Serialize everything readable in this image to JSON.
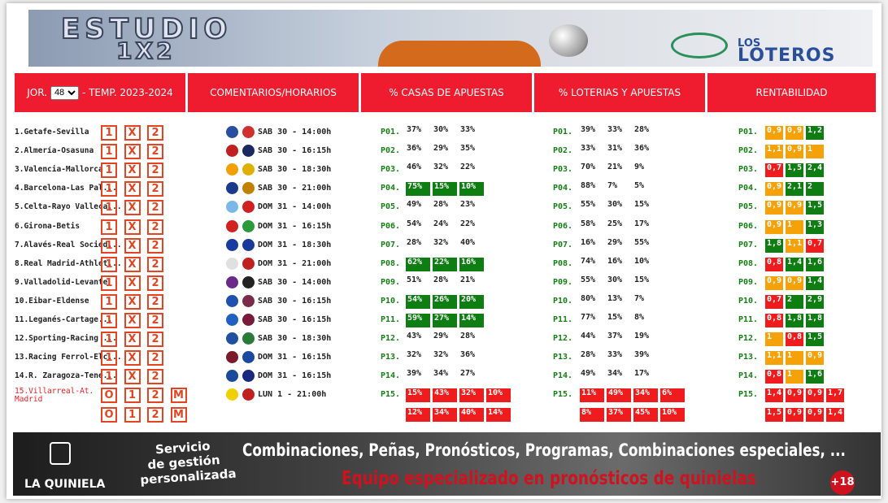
{
  "header": {
    "title_line1": "ESTUDIO",
    "title_line2": "1X2",
    "brand_small": "LOS",
    "brand": "LOTEROS"
  },
  "tabs": {
    "jornada_label": "JOR.",
    "jornada": "48",
    "season": "- TEMP. 2023-2024",
    "comments": "COMENTARIOS/HORARIOS",
    "casas": "% CASAS DE APUESTAS",
    "loterias": "% LOTERIAS Y APUESTAS",
    "rentabilidad": "RENTABILIDAD"
  },
  "rows": [
    {
      "match": "1.Getafe-Sevilla",
      "signs": [
        "1",
        "X",
        "2"
      ],
      "time": "SAB 30 - 14:00h",
      "pos": "P01.",
      "casas": [
        "37%",
        "30%",
        "33%"
      ],
      "loterias": [
        "39%",
        "33%",
        "28%"
      ],
      "rent": [
        "0,9",
        "0,9",
        "1,2"
      ],
      "rent_colors": [
        "orange",
        "orange",
        "green"
      ]
    },
    {
      "match": "2.Almería-Osasuna",
      "signs": [
        "1",
        "X",
        "2"
      ],
      "time": "SAB 30 - 16:15h",
      "pos": "P02.",
      "casas": [
        "36%",
        "29%",
        "35%"
      ],
      "loterias": [
        "33%",
        "31%",
        "36%"
      ],
      "rent": [
        "1,1",
        "0,9",
        "1"
      ],
      "rent_colors": [
        "orange",
        "orange",
        "orange"
      ]
    },
    {
      "match": "3.Valencia-Mallorca",
      "signs": [
        "1",
        "X",
        "2"
      ],
      "time": "SAB 30 - 18:30h",
      "pos": "P03.",
      "casas": [
        "46%",
        "32%",
        "22%"
      ],
      "loterias": [
        "70%",
        "21%",
        "9%"
      ],
      "rent": [
        "0,7",
        "1,5",
        "2,4"
      ],
      "rent_colors": [
        "red",
        "green",
        "green"
      ]
    },
    {
      "match": "4.Barcelona-Las Pal...",
      "signs": [
        "1",
        "X",
        "2"
      ],
      "time": "SAB 30 - 21:00h",
      "pos": "P04.",
      "casas": [
        "75%",
        "15%",
        "10%"
      ],
      "casas_color": "green",
      "loterias": [
        "88%",
        "7%",
        "5%"
      ],
      "rent": [
        "0,9",
        "2,1",
        "2"
      ],
      "rent_colors": [
        "orange",
        "green",
        "green"
      ]
    },
    {
      "match": "5.Celta-Rayo Valleca...",
      "signs": [
        "1",
        "X",
        "2"
      ],
      "time": "DOM 31 - 14:00h",
      "pos": "P05.",
      "casas": [
        "49%",
        "28%",
        "23%"
      ],
      "loterias": [
        "55%",
        "30%",
        "15%"
      ],
      "rent": [
        "0,9",
        "0,9",
        "1,5"
      ],
      "rent_colors": [
        "orange",
        "orange",
        "green"
      ]
    },
    {
      "match": "6.Girona-Betis",
      "signs": [
        "1",
        "X",
        "2"
      ],
      "time": "DOM 31 - 16:15h",
      "pos": "P06.",
      "casas": [
        "54%",
        "24%",
        "22%"
      ],
      "loterias": [
        "58%",
        "25%",
        "17%"
      ],
      "rent": [
        "0,9",
        "1",
        "1,3"
      ],
      "rent_colors": [
        "orange",
        "orange",
        "green"
      ]
    },
    {
      "match": "7.Alavés-Real Socied...",
      "signs": [
        "1",
        "X",
        "2"
      ],
      "time": "DOM 31 - 18:30h",
      "pos": "P07.",
      "casas": [
        "28%",
        "32%",
        "40%"
      ],
      "loterias": [
        "16%",
        "29%",
        "55%"
      ],
      "rent": [
        "1,8",
        "1,1",
        "0,7"
      ],
      "rent_colors": [
        "green",
        "orange",
        "red"
      ]
    },
    {
      "match": "8.Real Madrid-Athlet...",
      "signs": [
        "1",
        "X",
        "2"
      ],
      "time": "DOM 31 - 21:00h",
      "pos": "P08.",
      "casas": [
        "62%",
        "22%",
        "16%"
      ],
      "casas_color": "green",
      "loterias": [
        "74%",
        "16%",
        "10%"
      ],
      "rent": [
        "0,8",
        "1,4",
        "1,6"
      ],
      "rent_colors": [
        "red",
        "green",
        "green"
      ]
    },
    {
      "match": "9.Valladolid-Levante",
      "signs": [
        "1",
        "X",
        "2"
      ],
      "time": "SAB 30 - 14:00h",
      "pos": "P09.",
      "casas": [
        "51%",
        "28%",
        "21%"
      ],
      "loterias": [
        "55%",
        "30%",
        "15%"
      ],
      "rent": [
        "0,9",
        "0,9",
        "1,4"
      ],
      "rent_colors": [
        "orange",
        "orange",
        "green"
      ]
    },
    {
      "match": "10.Eibar-Eldense",
      "signs": [
        "1",
        "X",
        "2"
      ],
      "time": "SAB 30 - 16:15h",
      "pos": "P10.",
      "casas": [
        "54%",
        "26%",
        "20%"
      ],
      "casas_color": "green",
      "loterias": [
        "80%",
        "13%",
        "7%"
      ],
      "rent": [
        "0,7",
        "2",
        "2,9"
      ],
      "rent_colors": [
        "red",
        "green",
        "green"
      ]
    },
    {
      "match": "11.Leganés-Cartage...",
      "signs": [
        "1",
        "X",
        "2"
      ],
      "time": "SAB 30 - 16:15h",
      "pos": "P11.",
      "casas": [
        "59%",
        "27%",
        "14%"
      ],
      "casas_color": "green",
      "loterias": [
        "77%",
        "15%",
        "8%"
      ],
      "rent": [
        "0,8",
        "1,8",
        "1,8"
      ],
      "rent_colors": [
        "red",
        "green",
        "green"
      ]
    },
    {
      "match": "12.Sporting-Racing ...",
      "signs": [
        "1",
        "X",
        "2"
      ],
      "time": "SAB 30 - 18:30h",
      "pos": "P12.",
      "casas": [
        "43%",
        "29%",
        "28%"
      ],
      "loterias": [
        "44%",
        "37%",
        "19%"
      ],
      "rent": [
        "1",
        "0,8",
        "1,5"
      ],
      "rent_colors": [
        "orange",
        "red",
        "green"
      ]
    },
    {
      "match": "13.Racing Ferrol-Elc...",
      "signs": [
        "1",
        "X",
        "2"
      ],
      "time": "DOM 31 - 16:15h",
      "pos": "P13.",
      "casas": [
        "32%",
        "32%",
        "36%"
      ],
      "loterias": [
        "28%",
        "33%",
        "39%"
      ],
      "rent": [
        "1,1",
        "1",
        "0,9"
      ],
      "rent_colors": [
        "orange",
        "orange",
        "orange"
      ]
    },
    {
      "match": "14.R. Zaragoza-Tene...",
      "signs": [
        "1",
        "X",
        "2"
      ],
      "time": "DOM 31 - 16:15h",
      "pos": "P14.",
      "casas": [
        "39%",
        "34%",
        "27%"
      ],
      "loterias": [
        "49%",
        "34%",
        "17%"
      ],
      "rent": [
        "0,8",
        "1",
        "1,6"
      ],
      "rent_colors": [
        "red",
        "orange",
        "green"
      ]
    },
    {
      "match": "15.Villarreal-At. Madrid",
      "signs": [
        "O",
        "1",
        "2",
        "M"
      ],
      "signs2": [
        "O",
        "1",
        "2",
        "M"
      ],
      "time": "LUN 1 - 21:00h",
      "pos": "P15.",
      "casas": [
        "15%",
        "43%",
        "32%",
        "10%"
      ],
      "casas2": [
        "12%",
        "34%",
        "40%",
        "14%"
      ],
      "casas_color": "red",
      "loterias": [
        "11%",
        "49%",
        "34%",
        "6%"
      ],
      "loterias2": [
        "8%",
        "37%",
        "45%",
        "10%"
      ],
      "loterias_color": "red",
      "rent": [
        "1,4",
        "0,9",
        "0,9",
        "1,7"
      ],
      "rent2": [
        "1,5",
        "0,9",
        "0,9",
        "1,4"
      ],
      "rent_colors": [
        "red",
        "red",
        "red",
        "red"
      ]
    }
  ],
  "footer": {
    "brand": "LA QUINIELA",
    "service": [
      "Servicio",
      "de gestión",
      "personalizada"
    ],
    "line1": "Combinaciones, Peñas, Pronósticos, Programas, Combinaciones especiales, ...",
    "line2": "Equipo especializado en pronósticos de quinielas",
    "age": "+18"
  }
}
